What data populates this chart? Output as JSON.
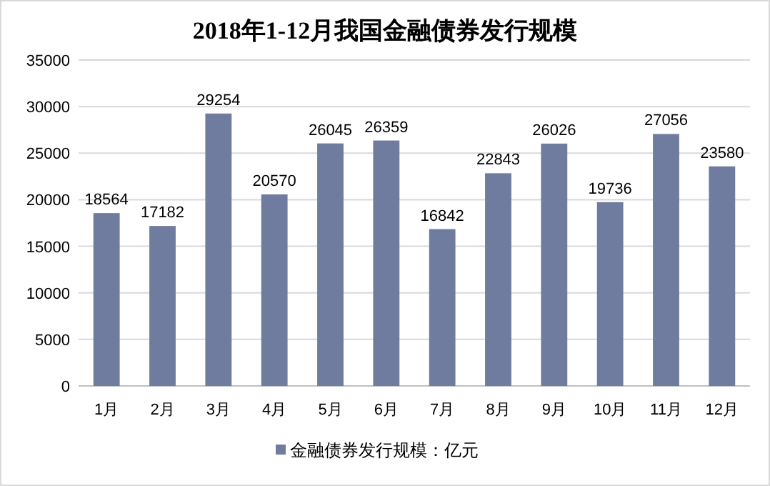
{
  "chart_data": {
    "type": "bar",
    "title": "2018年1-12月我国金融债券发行规模",
    "categories": [
      "1月",
      "2月",
      "3月",
      "4月",
      "5月",
      "6月",
      "7月",
      "8月",
      "9月",
      "10月",
      "11月",
      "12月"
    ],
    "series": [
      {
        "name": "金融债券发行规模：亿元",
        "color": "#6f7b9f",
        "values": [
          18564,
          17182,
          29254,
          20570,
          26045,
          26359,
          16842,
          22843,
          26026,
          19736,
          27056,
          23580
        ]
      }
    ],
    "ylim": [
      0,
      35000
    ],
    "yticks": [
      0,
      5000,
      10000,
      15000,
      20000,
      25000,
      30000,
      35000
    ],
    "grid": "y",
    "legend": "bottom",
    "data_labels": true
  }
}
